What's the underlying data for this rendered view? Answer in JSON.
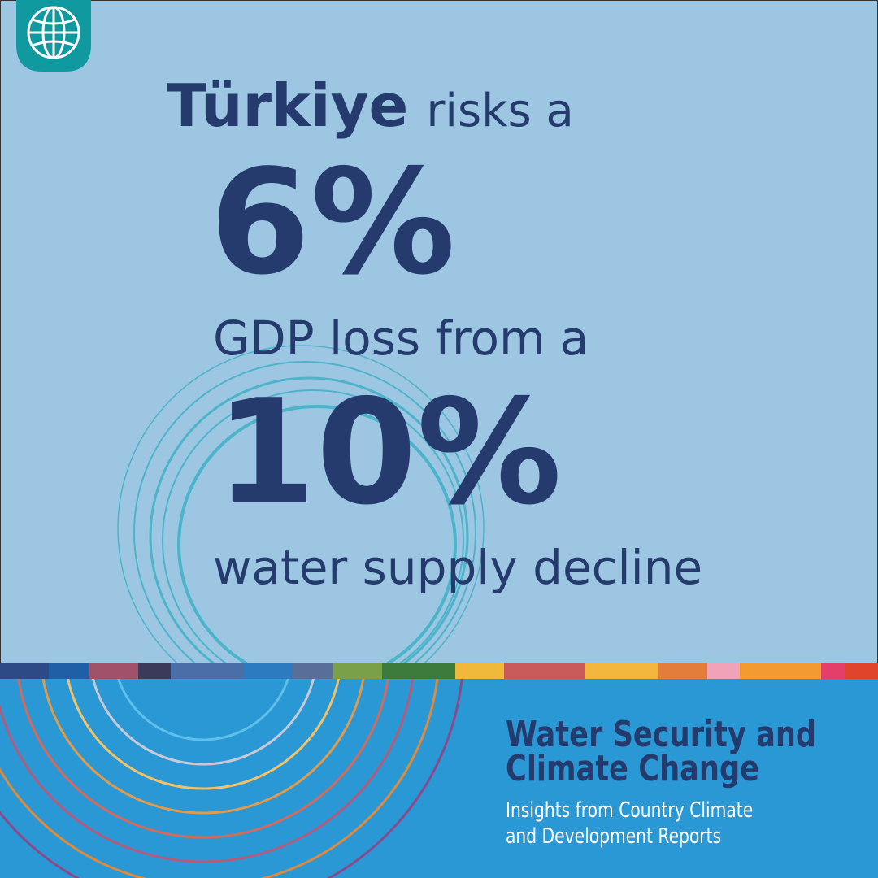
{
  "headline": {
    "country": "Türkiye",
    "line1": "risks a",
    "figure1": "6%",
    "line2": "GDP loss from a",
    "figure2": "10%",
    "line3": "water supply decline"
  },
  "report": {
    "title_line1": "Water Security and",
    "title_line2": "Climate Change",
    "subtitle_line1": "Insights from Country Climate",
    "subtitle_line2": "and Development Reports"
  }
}
